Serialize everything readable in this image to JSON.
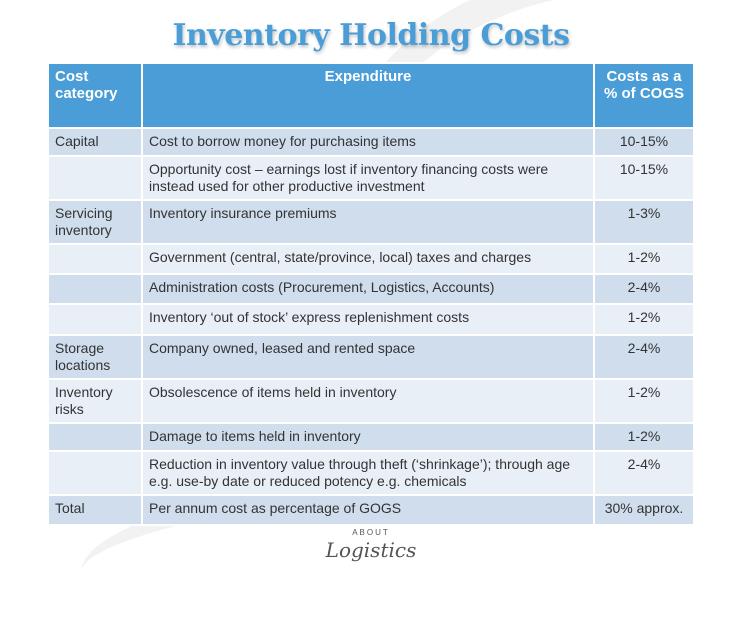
{
  "title": "Inventory Holding Costs",
  "table": {
    "headers": [
      "Cost category",
      "Expenditure",
      "Costs as a % of COGS"
    ],
    "rows": [
      {
        "category": "Capital",
        "expenditure": "Cost to borrow money for purchasing items",
        "cost": "10-15%"
      },
      {
        "category": "",
        "expenditure": "Opportunity cost – earnings lost if inventory financing costs were instead used for other productive investment",
        "cost": "10-15%"
      },
      {
        "category": "Servicing inventory",
        "expenditure": "Inventory insurance premiums",
        "cost": "1-3%"
      },
      {
        "category": "",
        "expenditure": "Government (central, state/province, local) taxes and charges",
        "cost": "1-2%"
      },
      {
        "category": "",
        "expenditure": "Administration costs (Procurement, Logistics, Accounts)",
        "cost": "2-4%"
      },
      {
        "category": "",
        "expenditure": "Inventory ‘out of stock’ express replenishment costs",
        "cost": "1-2%"
      },
      {
        "category": "Storage locations",
        "expenditure": "Company owned, leased and rented space",
        "cost": "2-4%"
      },
      {
        "category": "Inventory risks",
        "expenditure": "Obsolescence of items held in inventory",
        "cost": "1-2%"
      },
      {
        "category": "",
        "expenditure": "Damage to items held in inventory",
        "cost": "1-2%"
      },
      {
        "category": "",
        "expenditure": "Reduction in inventory value through theft (‘shrinkage’); through age e.g. use-by date or reduced potency e.g. chemicals",
        "cost": "2-4%"
      },
      {
        "category": "Total",
        "expenditure": "Per annum cost as percentage of GOGS",
        "cost": "30% approx."
      }
    ]
  },
  "logo": {
    "top": "ABOUT",
    "main": "Logistics"
  },
  "colors": {
    "header": "#4a9dd6",
    "row_dark": "#cfdded",
    "row_light": "#e9eff7"
  }
}
